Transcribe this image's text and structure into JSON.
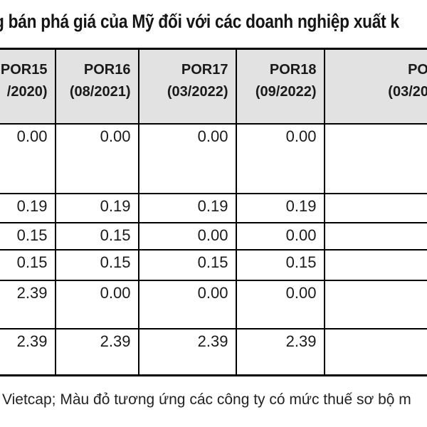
{
  "page": {
    "title_fragment": "g bán phá giá của Mỹ đối với các doanh nghiệp xuất k",
    "footnote_fragment": "Vietcap; Màu đỏ tương ứng các công ty có mức thuế sơ bộ m"
  },
  "colors": {
    "header_background": "#e2e2e2",
    "border": "#000000",
    "text": "#1a1a1a"
  },
  "table": {
    "columns": [
      {
        "line1": "POR15",
        "line2": "/2020)"
      },
      {
        "line1": "POR16",
        "line2": "(08/2021)"
      },
      {
        "line1": "POR17",
        "line2": "(03/2022)"
      },
      {
        "line1": "POR18",
        "line2": "(09/2022)"
      },
      {
        "line1": "PO",
        "line2": "(03/20"
      }
    ],
    "rows": [
      {
        "values": [
          "0.00",
          "0.00",
          "0.00",
          "0.00",
          ""
        ]
      },
      {
        "values": [
          "0.19",
          "0.19",
          "0.19",
          "0.19",
          ""
        ]
      },
      {
        "values": [
          "0.15",
          "0.15",
          "0.00",
          "0.00",
          ""
        ]
      },
      {
        "values": [
          "0.15",
          "0.15",
          "0.15",
          "0.15",
          ""
        ]
      },
      {
        "values": [
          "2.39",
          "0.00",
          "0.00",
          "0.00",
          ""
        ]
      },
      {
        "values": [
          "2.39",
          "2.39",
          "2.39",
          "2.39",
          ""
        ]
      }
    ]
  }
}
